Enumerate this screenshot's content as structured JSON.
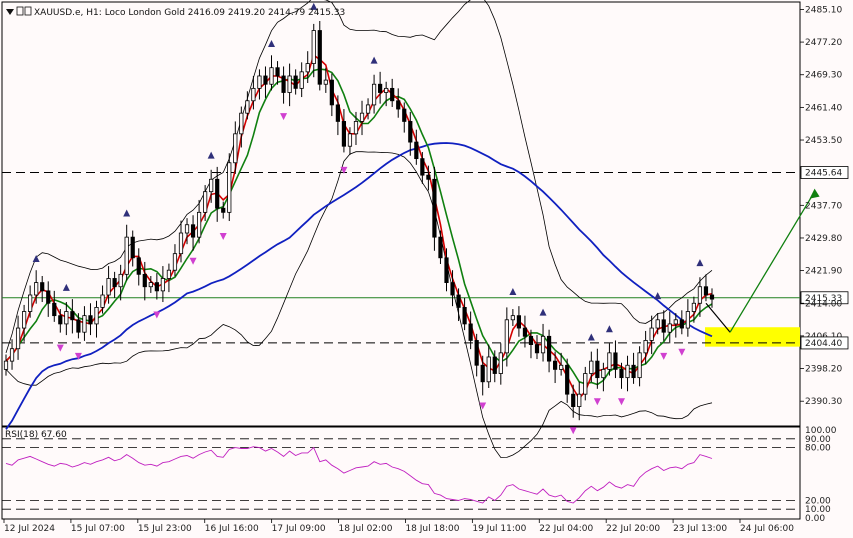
{
  "header": {
    "symbol": "XAUUSD.e",
    "timeframe": "H1",
    "description": "Loco London Gold",
    "ohlc": "2416.09 2419.20 2414.79 2415.33"
  },
  "rsi_label": "RSI(18) 67.60",
  "colors": {
    "background": "#fffafa",
    "bull_candle": "#000000",
    "bear_candle": "#000000",
    "ma_fast": "#d40000",
    "ma_slow": "#108010",
    "ma_long": "#1020c0",
    "bands": "#000000",
    "rsi": "#c020c0",
    "arrow_up_fractal": "#30307a",
    "arrow_down_fractal": "#d040d0",
    "zone": "#ffff00",
    "support_line": "#208020",
    "forecast_arrow": "#108010"
  },
  "chart_data": {
    "type": "candlestick",
    "price_axis": {
      "ylim": [
        2384.3,
        2486.9
      ],
      "ticks": [
        2485.1,
        2477.2,
        2469.3,
        2461.4,
        2453.5,
        2445.64,
        2437.7,
        2429.8,
        2421.9,
        2415.33,
        2414.0,
        2406.1,
        2404.4,
        2398.2,
        2390.3
      ]
    },
    "time_axis": {
      "labels": [
        "12 Jul 2024",
        "15 Jul 07:00",
        "15 Jul 23:00",
        "16 Jul 16:00",
        "17 Jul 09:00",
        "18 Jul 02:00",
        "18 Jul 18:00",
        "19 Jul 11:00",
        "22 Jul 04:00",
        "22 Jul 20:00",
        "23 Jul 13:00",
        "24 Jul 06:00"
      ]
    },
    "levels": [
      {
        "price": 2445.64,
        "style": "dashed",
        "color": "#000000",
        "label": "2445.64"
      },
      {
        "price": 2404.4,
        "style": "dashed",
        "color": "#000000",
        "label": "2404.40"
      },
      {
        "price": 2415.33,
        "style": "solid",
        "color": "#208020",
        "label": "2415.33"
      }
    ],
    "zone": {
      "from": 2403.5,
      "to": 2408.2
    },
    "forecast_path": [
      {
        "bar": 116,
        "price": 2414.0
      },
      {
        "bar": 120,
        "price": 2407.0
      },
      {
        "bar": 134,
        "price": 2441.0
      }
    ],
    "candles_close": [
      2400,
      2403,
      2408,
      2412,
      2416,
      2419,
      2417,
      2414,
      2411,
      2409,
      2412,
      2410,
      2407,
      2411,
      2409,
      2413,
      2416,
      2420,
      2418,
      2421,
      2430,
      2425,
      2421,
      2418,
      2419,
      2417,
      2420,
      2422,
      2426,
      2431,
      2433,
      2430,
      2436,
      2441,
      2444,
      2437,
      2436,
      2448,
      2455,
      2460,
      2463,
      2466,
      2469,
      2467,
      2471,
      2469,
      2465,
      2469,
      2466,
      2470,
      2472,
      2480,
      2467,
      2468,
      2462,
      2458,
      2452,
      2455,
      2458,
      2460,
      2462,
      2467,
      2465,
      2466,
      2463,
      2461,
      2458,
      2453,
      2449,
      2445,
      2444,
      2430,
      2425,
      2419,
      2416,
      2413,
      2409,
      2405,
      2399,
      2395,
      2401,
      2397,
      2402,
      2410,
      2411,
      2408,
      2406,
      2404,
      2402,
      2406,
      2400,
      2398,
      2399,
      2392,
      2389,
      2392,
      2397,
      2400,
      2396,
      2398,
      2402,
      2398,
      2396,
      2399,
      2396,
      2402,
      2405,
      2408,
      2410,
      2407,
      2409,
      2410,
      2408,
      2412,
      2414,
      2418,
      2416,
      2415
    ],
    "rsi": {
      "levels": [
        100,
        90,
        80,
        20,
        10,
        0
      ],
      "level_labels": [
        "100.00",
        "90.00",
        "80.00",
        "20.00",
        "10.00",
        "0.00"
      ],
      "values": [
        62,
        60,
        66,
        68,
        70,
        67,
        64,
        61,
        59,
        62,
        61,
        58,
        60,
        63,
        61,
        64,
        66,
        69,
        65,
        67,
        72,
        68,
        63,
        60,
        61,
        59,
        63,
        64,
        67,
        70,
        71,
        68,
        72,
        75,
        77,
        70,
        69,
        78,
        80,
        79,
        79,
        81,
        80,
        76,
        79,
        75,
        70,
        76,
        71,
        74,
        74,
        80,
        64,
        66,
        60,
        56,
        51,
        54,
        57,
        58,
        59,
        64,
        61,
        62,
        58,
        56,
        53,
        48,
        43,
        39,
        38,
        28,
        26,
        22,
        21,
        20,
        22,
        21,
        19,
        17,
        24,
        20,
        26,
        36,
        38,
        33,
        31,
        29,
        27,
        33,
        26,
        24,
        26,
        19,
        17,
        23,
        31,
        36,
        31,
        35,
        41,
        36,
        34,
        38,
        36,
        46,
        52,
        56,
        59,
        54,
        57,
        58,
        56,
        61,
        63,
        72,
        70,
        67.6
      ]
    }
  }
}
